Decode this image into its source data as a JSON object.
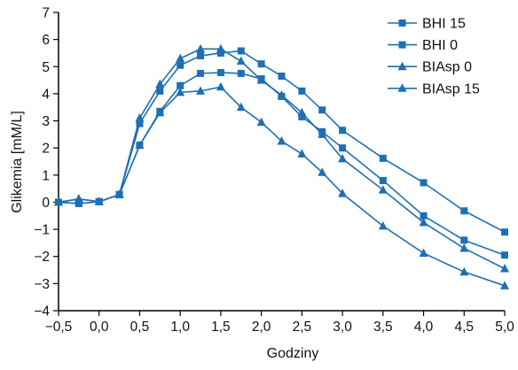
{
  "chart_data": {
    "type": "line",
    "xlabel": "Godziny",
    "ylabel": "Glikemia [mM/L]",
    "xlim": [
      -0.5,
      5.0
    ],
    "ylim": [
      -4,
      7
    ],
    "x_ticks": [
      -0.5,
      0.0,
      0.5,
      1.0,
      1.5,
      2.0,
      2.5,
      3.0,
      3.5,
      4.0,
      4.5,
      5.0
    ],
    "x_tick_labels": [
      "−0,5",
      "0,0",
      "0,5",
      "1,0",
      "1,5",
      "2,0",
      "2,5",
      "3,0",
      "3,5",
      "4,0",
      "4,5",
      "5,0"
    ],
    "y_ticks": [
      -4,
      -3,
      -2,
      -1,
      0,
      1,
      2,
      3,
      4,
      5,
      6,
      7
    ],
    "y_tick_labels": [
      "−4",
      "−3",
      "−2",
      "−1",
      "0",
      "1",
      "2",
      "3",
      "4",
      "5",
      "6",
      "7"
    ],
    "grid": false,
    "legend_position": "top-right",
    "colors": {
      "series": "#1e6fb3",
      "axis": "#000000"
    },
    "series": [
      {
        "name": "BHI 15",
        "marker": "square",
        "x": [
          -0.5,
          -0.25,
          0,
          0.25,
          0.5,
          0.75,
          1.0,
          1.25,
          1.5,
          1.75,
          2.0,
          2.25,
          2.5,
          2.75,
          3.0,
          3.5,
          4.0,
          4.5,
          5.0
        ],
        "y": [
          0,
          -0.05,
          0.02,
          0.28,
          2.1,
          3.35,
          4.3,
          4.75,
          4.78,
          4.75,
          4.55,
          3.9,
          3.15,
          2.6,
          2.0,
          0.8,
          -0.5,
          -1.4,
          -1.95
        ]
      },
      {
        "name": "BHI 0",
        "marker": "square",
        "x": [
          -0.5,
          -0.25,
          0,
          0.25,
          0.5,
          0.75,
          1.0,
          1.25,
          1.5,
          1.75,
          2.0,
          2.25,
          2.5,
          2.75,
          3.0,
          3.5,
          4.0,
          4.5,
          5.0
        ],
        "y": [
          0,
          -0.05,
          0.02,
          0.28,
          2.9,
          4.1,
          5.05,
          5.4,
          5.5,
          5.58,
          5.1,
          4.65,
          4.1,
          3.4,
          2.65,
          1.62,
          0.72,
          -0.32,
          -1.1
        ]
      },
      {
        "name": "BIAsp 0",
        "marker": "triangle",
        "x": [
          -0.5,
          -0.25,
          0,
          0.25,
          0.5,
          0.75,
          1.0,
          1.25,
          1.5,
          1.75,
          2.0,
          2.25,
          2.5,
          2.75,
          3.0,
          3.5,
          4.0,
          4.5,
          5.0
        ],
        "y": [
          0,
          0.12,
          0.02,
          0.28,
          3.1,
          4.35,
          5.3,
          5.65,
          5.65,
          5.2,
          4.5,
          3.95,
          3.3,
          2.5,
          1.6,
          0.45,
          -0.75,
          -1.7,
          -2.45
        ]
      },
      {
        "name": "BIAsp 15",
        "marker": "triangle",
        "x": [
          -0.5,
          -0.25,
          0,
          0.25,
          0.5,
          0.75,
          1.0,
          1.25,
          1.5,
          1.75,
          2.0,
          2.25,
          2.5,
          2.75,
          3.0,
          3.5,
          4.0,
          4.5,
          5.0
        ],
        "y": [
          0,
          0.12,
          0.02,
          0.28,
          2.1,
          3.3,
          4.05,
          4.1,
          4.25,
          3.5,
          2.95,
          2.25,
          1.78,
          1.1,
          0.32,
          -0.88,
          -1.88,
          -2.57,
          -3.08
        ]
      }
    ]
  }
}
